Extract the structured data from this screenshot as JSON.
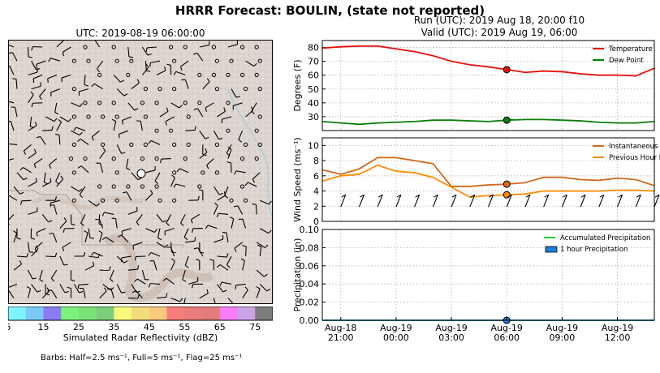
{
  "title": "HRRR Forecast: BOULIN, (state not reported)",
  "run_label": "Run (UTC): 2019 Aug 18, 20:00 f10",
  "valid_label": "Valid (UTC): 2019 Aug 19, 06:00",
  "map": {
    "title": "UTC: 2019-08-19 06:00:00",
    "colorbar": {
      "label": "Simulated Radar Reflectivity (dBZ)",
      "ticks": [
        "5",
        "15",
        "25",
        "35",
        "45",
        "55",
        "65",
        "75"
      ],
      "colors": [
        "#7ff3ff",
        "#7cc9f7",
        "#8a7cf3",
        "#7cf27c",
        "#7ce27c",
        "#7ccd7c",
        "#f9f97c",
        "#f3dc7c",
        "#f9c97c",
        "#f77c7c",
        "#e97c7c",
        "#e07c7c",
        "#f97cf9",
        "#c9a3e6",
        "#7c7c7c"
      ]
    },
    "barbs_note": "Barbs: Half=2.5 ms⁻¹, Full=5 ms⁻¹, Flag=25 ms⁻¹"
  },
  "chart_data": [
    {
      "type": "line",
      "ylabel": "Degrees (F)",
      "ylim": [
        20,
        85
      ],
      "yticks": [
        30,
        40,
        50,
        60,
        70,
        80
      ],
      "x": [
        "2019-08-18 20:00",
        "2019-08-18 21:00",
        "2019-08-18 22:00",
        "2019-08-18 23:00",
        "2019-08-19 00:00",
        "2019-08-19 01:00",
        "2019-08-19 02:00",
        "2019-08-19 03:00",
        "2019-08-19 04:00",
        "2019-08-19 05:00",
        "2019-08-19 06:00",
        "2019-08-19 07:00",
        "2019-08-19 08:00",
        "2019-08-19 09:00",
        "2019-08-19 10:00",
        "2019-08-19 11:00",
        "2019-08-19 12:00",
        "2019-08-19 13:00",
        "2019-08-19 14:00"
      ],
      "series": [
        {
          "name": "Temperature",
          "color": "#e8100c",
          "values": [
            79.5,
            80.5,
            81,
            81,
            79,
            77,
            74,
            70,
            67.5,
            66,
            64,
            62,
            63,
            62.5,
            61,
            60,
            60,
            59.5,
            65
          ]
        },
        {
          "name": "Dew Point",
          "color": "#0a7f0a",
          "values": [
            26.5,
            25.5,
            24.5,
            25.5,
            26,
            26.5,
            27.5,
            27.5,
            27,
            26.5,
            27.5,
            28,
            28,
            27.5,
            27,
            26,
            25.5,
            25.5,
            26.5
          ]
        }
      ],
      "marker_x": "2019-08-19 06:00",
      "legend": "top-right",
      "grid": true
    },
    {
      "type": "line",
      "ylabel": "Wind Speed (ms⁻¹)",
      "ylim": [
        0,
        11
      ],
      "yticks": [
        0,
        2,
        4,
        6,
        8,
        10
      ],
      "x": [
        "2019-08-18 20:00",
        "2019-08-18 21:00",
        "2019-08-18 22:00",
        "2019-08-18 23:00",
        "2019-08-19 00:00",
        "2019-08-19 01:00",
        "2019-08-19 02:00",
        "2019-08-19 03:00",
        "2019-08-19 04:00",
        "2019-08-19 05:00",
        "2019-08-19 06:00",
        "2019-08-19 07:00",
        "2019-08-19 08:00",
        "2019-08-19 09:00",
        "2019-08-19 10:00",
        "2019-08-19 11:00",
        "2019-08-19 12:00",
        "2019-08-19 13:00",
        "2019-08-19 14:00"
      ],
      "series": [
        {
          "name": "Instantaneous Wind Gust",
          "color": "#d2691e",
          "values": [
            6.8,
            6.2,
            6.9,
            8.4,
            8.4,
            8.0,
            7.6,
            4.6,
            4.6,
            4.8,
            4.9,
            5.1,
            5.8,
            5.8,
            5.5,
            5.4,
            5.7,
            5.5,
            4.7
          ]
        },
        {
          "name": "Previous Hour Max Wind",
          "color": "#ff8c00",
          "values": [
            5.3,
            6.0,
            6.2,
            7.4,
            6.6,
            6.4,
            5.8,
            4.5,
            3.2,
            3.4,
            3.5,
            3.6,
            4.0,
            4.0,
            4.0,
            4.0,
            4.1,
            4.1,
            4.0
          ]
        }
      ],
      "marker_x": "2019-08-19 06:00",
      "legend": "top-right",
      "grid": true
    },
    {
      "type": "line",
      "ylabel": "Precipitation (in)",
      "ylim": [
        0,
        0.1
      ],
      "yticks": [
        "0.00",
        "0.02",
        "0.04",
        "0.06",
        "0.08",
        "0.10"
      ],
      "x": [
        "2019-08-18 20:00",
        "2019-08-19 14:00"
      ],
      "series": [
        {
          "name": "Accumulated Precipitation",
          "color": "#2bc92b",
          "values": [
            0,
            0
          ]
        },
        {
          "name": "1 hour Precipitation",
          "color": "#1e7fd8",
          "values": [
            0,
            0
          ]
        }
      ],
      "xtick_labels": [
        [
          "Aug-18",
          "21:00"
        ],
        [
          "Aug-19",
          "00:00"
        ],
        [
          "Aug-19",
          "03:00"
        ],
        [
          "Aug-19",
          "06:00"
        ],
        [
          "Aug-19",
          "09:00"
        ],
        [
          "Aug-19",
          "12:00"
        ]
      ],
      "marker_x": "2019-08-19 06:00",
      "legend": "top-right",
      "grid": true
    }
  ]
}
